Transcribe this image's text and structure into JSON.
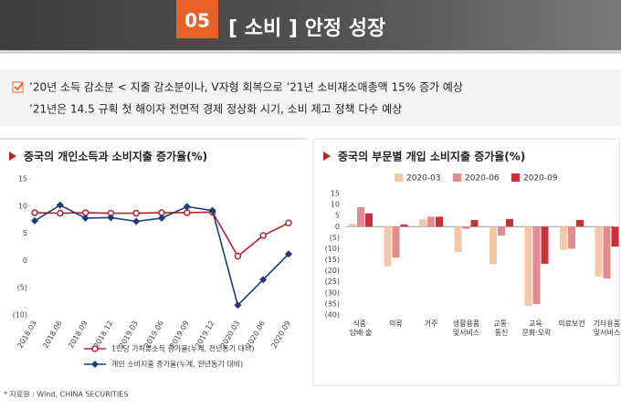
{
  "header": {
    "badge": "05",
    "title": "[ 소비 ] 안정 성장"
  },
  "bullets": [
    "’20년 소득 감소분 < 지출 감소분이나, V자형 회복으로 ’21년 소비재소매총액 15% 증가 예상",
    "’21년은 14.5 규획 첫 해이자 전면적 경제 정상화 시기, 소비 제고 정책 다수 예상"
  ],
  "source": "* 자료원 : Wind, CHINA SECURITIES",
  "chart_data": [
    {
      "type": "line",
      "title": "중국의 개인소득과 소비지출 증가율(%)",
      "categories": [
        "2018.03",
        "2018.06",
        "2018.09",
        "2018.12",
        "2019.03",
        "2019.06",
        "2019.09",
        "2019.12",
        "2020.03",
        "2020.06",
        "2020.09"
      ],
      "series": [
        {
          "name": "1인당 가처분소득 증가율(누계, 전년동기 대비)",
          "color": "#b8232f",
          "marker": "circle",
          "values": [
            8.8,
            8.7,
            8.8,
            8.7,
            8.7,
            8.8,
            8.8,
            8.9,
            0.8,
            4.6,
            6.9
          ]
        },
        {
          "name": "개인 소비지출 증가율(누계, 전년동기 대비)",
          "color": "#1f3a7a",
          "marker": "diamond",
          "values": [
            7.3,
            10.2,
            7.8,
            7.9,
            7.2,
            7.8,
            9.9,
            9.2,
            -8.2,
            -3.5,
            1.2
          ]
        }
      ],
      "ylim": [
        -10,
        15
      ],
      "yticks": [
        15,
        10,
        5,
        0,
        {
          "value": -5,
          "label": "(5)"
        },
        {
          "value": -10,
          "label": "(10)"
        }
      ]
    },
    {
      "type": "bar",
      "title": "중국의 부문별 개입 소비지출 증가율(%)",
      "categories": [
        "식품·\n담배·술",
        "의류",
        "거주",
        "생활용품\n및서비스",
        "교통·\n통신",
        "교육·\n문화·오락",
        "의료보건",
        "기타용품\n및서비스"
      ],
      "series": [
        {
          "name": "2020-03",
          "color": "#f4c7a8",
          "values": [
            1.3,
            -18,
            3.3,
            -11.5,
            -17,
            -36,
            -10.5,
            -22.5
          ]
        },
        {
          "name": "2020-06",
          "color": "#e38b8f",
          "values": [
            8.8,
            -14,
            4.5,
            -1,
            -4,
            -35,
            -10,
            -23.5
          ]
        },
        {
          "name": "2020-09",
          "color": "#c8303a",
          "values": [
            6,
            1,
            4.5,
            3,
            3.5,
            -16.8,
            3,
            -9
          ]
        }
      ],
      "ylim": [
        -40,
        15
      ],
      "yticks": [
        15,
        10,
        5,
        0,
        {
          "value": -5,
          "label": "(5)"
        },
        {
          "value": -10,
          "label": "(10)"
        },
        {
          "value": -15,
          "label": "(15)"
        },
        {
          "value": -20,
          "label": "(20)"
        },
        {
          "value": -25,
          "label": "(25)"
        },
        {
          "value": -30,
          "label": "(30)"
        },
        {
          "value": -35,
          "label": "(35)"
        },
        {
          "value": -40,
          "label": "(40)"
        }
      ]
    }
  ]
}
